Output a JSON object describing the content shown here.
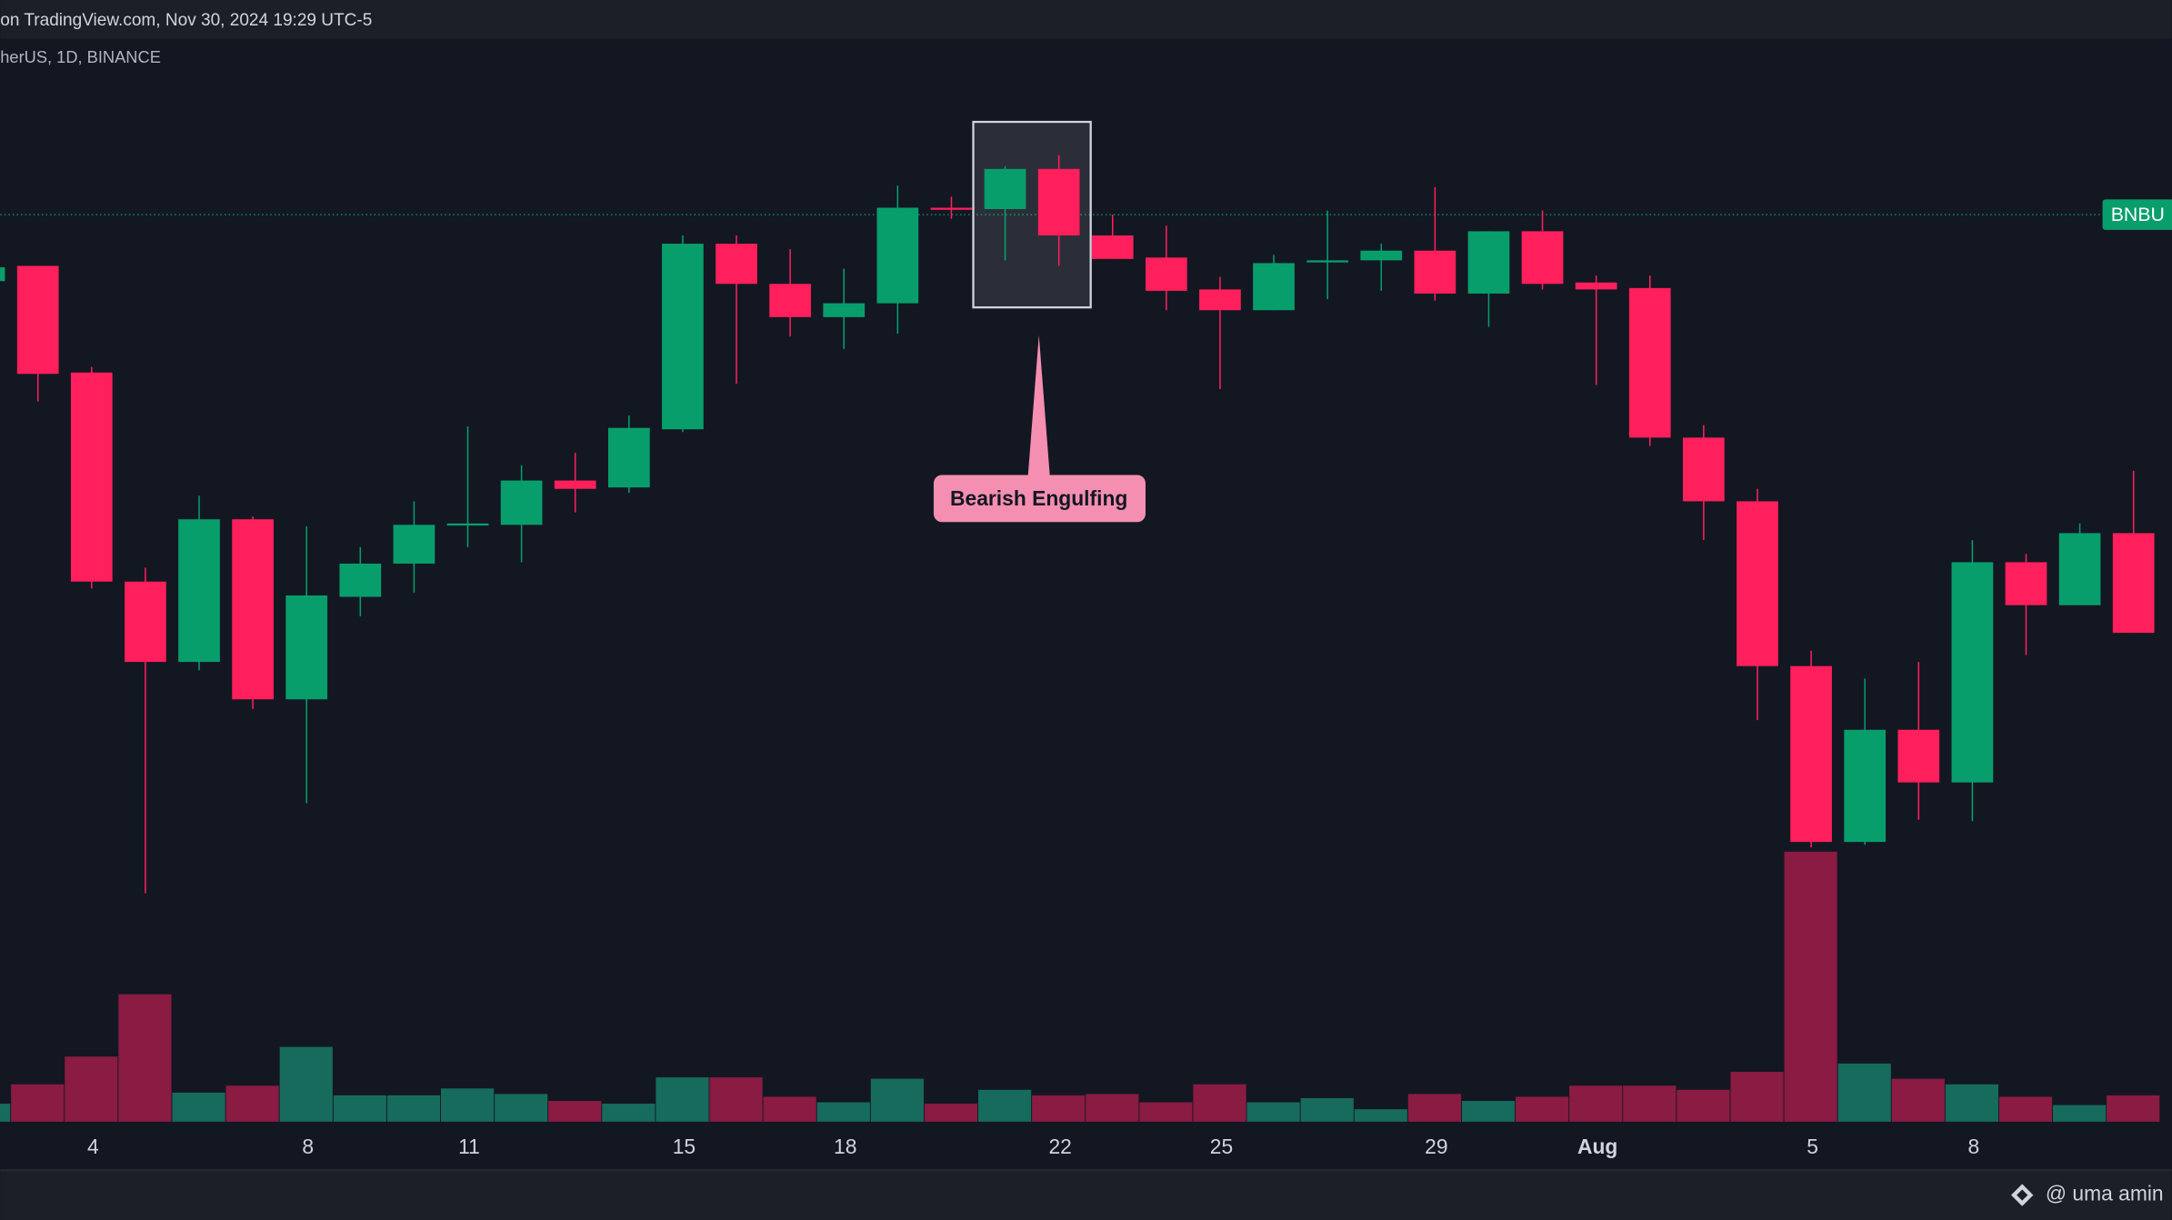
{
  "chart_data": {
    "type": "candlestick",
    "header": "on TradingView.com, Nov 30, 2024 19:29 UTC-5",
    "symbol": "herUS, 1D, BINANCE",
    "annotation": "Bearish Engulfing",
    "price_label": "BNBU",
    "last_price": 655,
    "footer": "@ uma amin",
    "up_color": "#089e6c",
    "down_color": "#ff1f5c",
    "volume_up_color": "#166b5c",
    "volume_down_color": "#8a1b43",
    "categories": [
      null,
      null,
      "4",
      null,
      null,
      null,
      "8",
      null,
      null,
      "11",
      null,
      null,
      null,
      "15",
      null,
      null,
      "18",
      null,
      null,
      null,
      "22",
      null,
      null,
      "25",
      null,
      null,
      null,
      "29",
      null,
      null,
      "Aug",
      null,
      null,
      null,
      "5",
      null,
      null,
      "8",
      null,
      null,
      null
    ],
    "open": [
      607,
      618,
      541,
      390,
      332,
      435,
      305,
      379,
      403,
      431,
      431,
      463,
      458,
      500,
      634,
      605,
      581,
      591,
      660,
      659,
      688,
      640,
      624,
      601,
      586,
      621,
      622,
      629,
      598,
      643,
      606,
      602,
      494,
      448,
      329,
      202,
      283,
      245,
      404,
      373,
      425
    ],
    "high": [
      620,
      618,
      545,
      400,
      452,
      437,
      430,
      415,
      448,
      502,
      474,
      483,
      510,
      640,
      640,
      630,
      616,
      676,
      668,
      690,
      698,
      655,
      647,
      610,
      626,
      658,
      634,
      675,
      643,
      658,
      611,
      611,
      503,
      457,
      340,
      320,
      332,
      420,
      410,
      432,
      470
    ],
    "low": [
      605,
      520,
      385,
      165,
      326,
      298,
      230,
      365,
      382,
      415,
      404,
      440,
      454,
      498,
      533,
      567,
      558,
      569,
      652,
      622,
      618,
      623,
      586,
      529,
      586,
      594,
      600,
      593,
      574,
      601,
      532,
      488,
      420,
      290,
      198,
      200,
      218,
      217,
      337,
      373,
      353
    ],
    "close": [
      617,
      540,
      390,
      332,
      435,
      305,
      380,
      403,
      431,
      432,
      463,
      457,
      501,
      634,
      605,
      581,
      591,
      660,
      659,
      688,
      640,
      623,
      600,
      586,
      620,
      622,
      629,
      598,
      643,
      605,
      601,
      494,
      448,
      329,
      202,
      283,
      245,
      404,
      373,
      425,
      353
    ],
    "volume": [
      13,
      27,
      47,
      92,
      21,
      26,
      54,
      19,
      19,
      24,
      20,
      15,
      13,
      32,
      32,
      18,
      14,
      31,
      13,
      23,
      19,
      20,
      14,
      27,
      14,
      17,
      9,
      20,
      15,
      18,
      26,
      26,
      23,
      36,
      195,
      42,
      31,
      27,
      18,
      12,
      19
    ],
    "ylim": [
      0,
      782
    ],
    "vlim": [
      0,
      782
    ]
  }
}
